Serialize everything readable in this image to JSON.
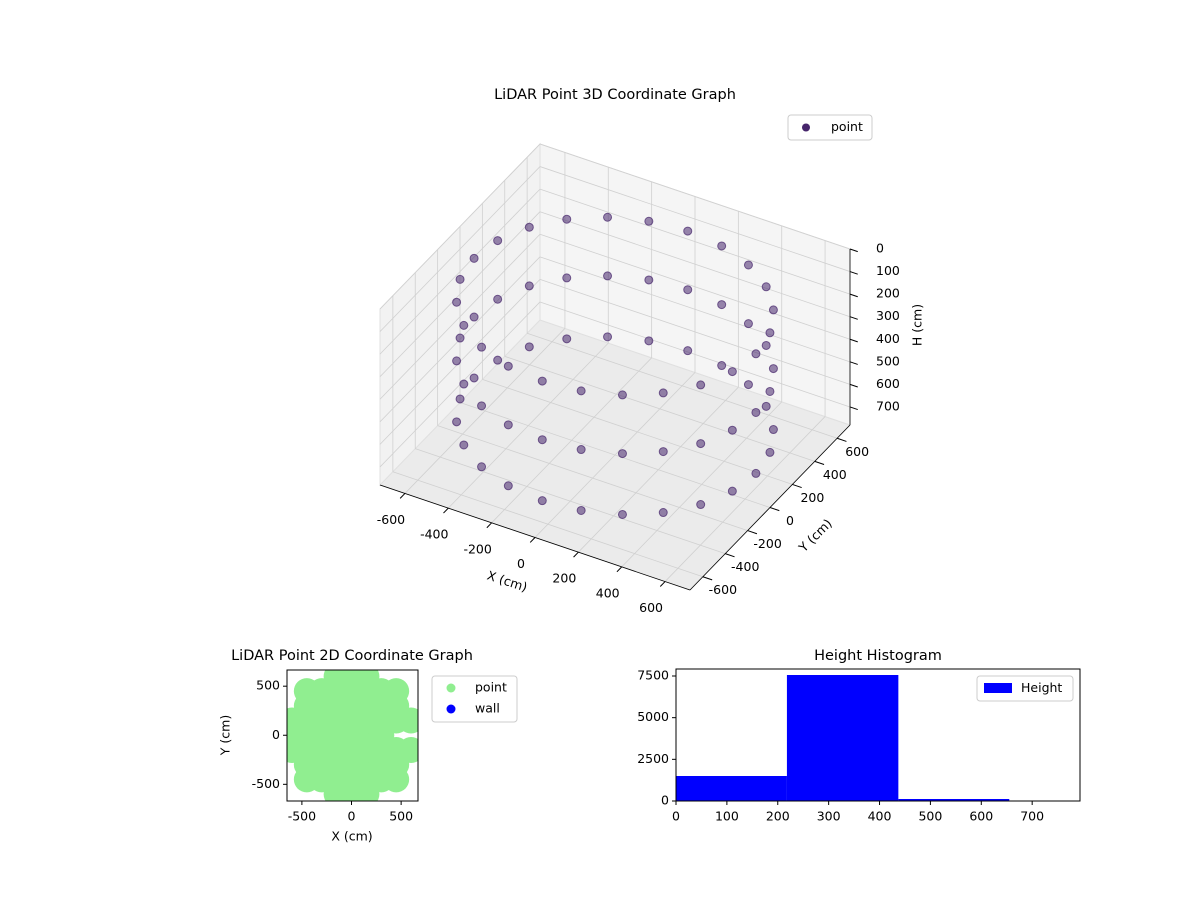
{
  "chart_data": [
    {
      "type": "scatter3d",
      "title": "LiDAR Point 3D Coordinate Graph",
      "xlabel": "X (cm)",
      "ylabel": "Y (cm)",
      "zlabel": "H (cm)",
      "xlim": [
        -715,
        715
      ],
      "ylim": [
        -715,
        715
      ],
      "zlim": [
        780,
        0
      ],
      "xticks": [
        -600,
        -400,
        -200,
        0,
        200,
        400,
        600
      ],
      "yticks": [
        -600,
        -400,
        -200,
        0,
        200,
        400,
        600
      ],
      "zticks": [
        0,
        100,
        200,
        300,
        400,
        500,
        600,
        700
      ],
      "grid": true,
      "legend": "upper right",
      "series": [
        {
          "name": "point",
          "color": "#46256b",
          "x": [
            650,
            628,
            563,
            460,
            325,
            168,
            0,
            -168,
            -325,
            -460,
            -563,
            -628,
            -650,
            -628,
            -563,
            -460,
            -325,
            -168,
            0,
            168,
            325,
            460,
            563,
            628,
            650,
            628,
            563,
            460,
            325,
            168,
            0,
            -168,
            -325,
            -460,
            -563,
            -628,
            -650,
            -628,
            -563,
            -460,
            -325,
            -168,
            0,
            168,
            325,
            460,
            563,
            628,
            650,
            628,
            563,
            460,
            325,
            168,
            0,
            -168,
            -325,
            -460,
            -563,
            -628,
            -650,
            -628,
            -563,
            -460,
            -325,
            -168,
            0,
            168,
            325,
            460,
            563,
            628
          ],
          "y": [
            0,
            168,
            325,
            460,
            563,
            628,
            650,
            628,
            563,
            460,
            325,
            168,
            0,
            -168,
            -325,
            -460,
            -563,
            -628,
            -650,
            -628,
            -563,
            -460,
            -325,
            -168,
            0,
            168,
            325,
            460,
            563,
            628,
            650,
            628,
            563,
            460,
            325,
            168,
            0,
            -168,
            -325,
            -460,
            -563,
            -628,
            -650,
            -628,
            -563,
            -460,
            -325,
            -168,
            0,
            168,
            325,
            460,
            563,
            628,
            650,
            628,
            563,
            460,
            325,
            168,
            0,
            -168,
            -325,
            -460,
            -563,
            -628,
            -650,
            -628,
            -563,
            -460,
            -325,
            -168
          ],
          "z": [
            120,
            120,
            120,
            120,
            120,
            120,
            120,
            120,
            120,
            120,
            120,
            120,
            120,
            120,
            120,
            120,
            120,
            120,
            120,
            120,
            120,
            120,
            120,
            120,
            380,
            380,
            380,
            380,
            380,
            380,
            380,
            380,
            380,
            380,
            380,
            380,
            380,
            380,
            380,
            380,
            380,
            380,
            380,
            380,
            380,
            380,
            380,
            380,
            650,
            650,
            650,
            650,
            650,
            650,
            650,
            650,
            650,
            650,
            650,
            650,
            650,
            650,
            650,
            650,
            650,
            650,
            650,
            650,
            650,
            650,
            650,
            650
          ]
        }
      ]
    },
    {
      "type": "scatter",
      "title": "LiDAR Point 2D Coordinate Graph",
      "xlabel": "X (cm)",
      "ylabel": "Y (cm)",
      "xlim": [
        -650,
        670
      ],
      "ylim": [
        -670,
        665
      ],
      "xticks": [
        -500,
        0,
        500
      ],
      "yticks": [
        -500,
        0,
        500
      ],
      "legend": "outside right",
      "series": [
        {
          "name": "point",
          "color": "#90ee90",
          "x": [
            -600,
            -600,
            -600,
            -450,
            -450,
            -450,
            -450,
            -450,
            -450,
            -450,
            -300,
            -300,
            -300,
            -300,
            -300,
            -300,
            -300,
            -150,
            -150,
            -150,
            -150,
            -150,
            -150,
            -150,
            -150,
            -150,
            0,
            0,
            0,
            0,
            0,
            0,
            0,
            0,
            0,
            150,
            150,
            150,
            150,
            150,
            150,
            150,
            150,
            150,
            300,
            300,
            300,
            300,
            300,
            300,
            300,
            450,
            450,
            450,
            450,
            450,
            450,
            600,
            600
          ],
          "y": [
            -150,
            0,
            150,
            -450,
            -300,
            -150,
            0,
            150,
            300,
            450,
            -450,
            -300,
            -150,
            0,
            150,
            300,
            450,
            -600,
            -450,
            -300,
            -150,
            0,
            150,
            300,
            450,
            600,
            -600,
            -450,
            -300,
            -150,
            0,
            150,
            300,
            450,
            600,
            -600,
            -450,
            -300,
            -150,
            0,
            150,
            300,
            450,
            600,
            -450,
            -300,
            -150,
            0,
            150,
            300,
            450,
            -450,
            -300,
            -150,
            150,
            300,
            450,
            -150,
            150
          ]
        },
        {
          "name": "wall",
          "color": "#0000ff",
          "x": [],
          "y": []
        }
      ]
    },
    {
      "type": "histogram",
      "title": "Height Histogram",
      "legend": "upper right",
      "bins": [
        0,
        218,
        437,
        655
      ],
      "xlim": [
        0,
        794
      ],
      "ylim": [
        0,
        7920
      ],
      "xticks": [
        0,
        100,
        200,
        300,
        400,
        500,
        600,
        700
      ],
      "yticks": [
        0,
        2500,
        5000,
        7500
      ],
      "series": [
        {
          "name": "Height",
          "color": "#0000ff",
          "values": [
            1500,
            7560,
            120
          ]
        }
      ]
    }
  ]
}
